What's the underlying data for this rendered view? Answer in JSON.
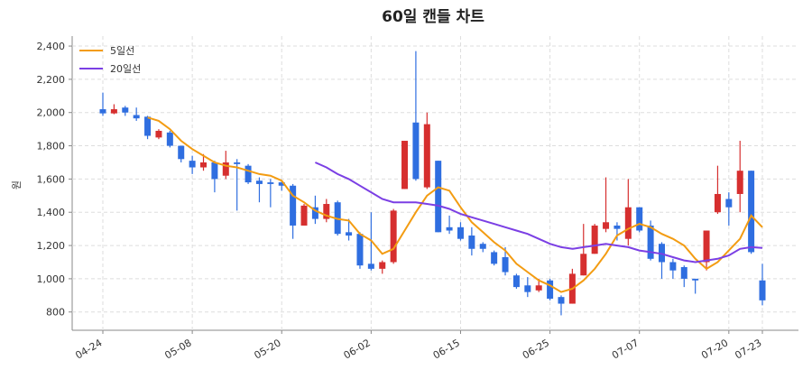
{
  "chart_data": {
    "type": "candlestick",
    "title": "60일 캔들 차트",
    "y_label": "원",
    "categories": [
      "04-24",
      null,
      null,
      null,
      null,
      null,
      null,
      null,
      "05-08",
      null,
      null,
      null,
      null,
      null,
      null,
      null,
      "05-20",
      null,
      null,
      null,
      null,
      null,
      null,
      null,
      "06-02",
      null,
      null,
      null,
      null,
      null,
      null,
      null,
      "06-15",
      null,
      null,
      null,
      null,
      null,
      null,
      null,
      "06-25",
      null,
      null,
      null,
      null,
      null,
      null,
      null,
      "07-07",
      null,
      null,
      null,
      null,
      null,
      null,
      null,
      "07-20",
      null,
      null,
      "07-23"
    ],
    "open": [
      2020,
      1995,
      2030,
      1985,
      1975,
      1850,
      1880,
      1800,
      1710,
      1670,
      1700,
      1620,
      1700,
      1680,
      1590,
      1580,
      1580,
      1560,
      1320,
      1430,
      1360,
      1460,
      1280,
      1270,
      1090,
      1060,
      1100,
      1540,
      1940,
      1550,
      1710,
      1310,
      1310,
      1260,
      1210,
      1160,
      1130,
      1020,
      960,
      930,
      990,
      890,
      850,
      1020,
      1150,
      1300,
      1320,
      1240,
      1430,
      1320,
      1210,
      1100,
      1070,
      1000,
      1100,
      1400,
      1480,
      1510,
      1650,
      990
    ],
    "high": [
      2120,
      2050,
      2040,
      2030,
      1980,
      1900,
      1890,
      1800,
      1740,
      1750,
      1710,
      1770,
      1720,
      1690,
      1610,
      1600,
      1590,
      1570,
      1450,
      1500,
      1480,
      1470,
      1360,
      1280,
      1400,
      1110,
      1420,
      1830,
      2370,
      2000,
      1710,
      1380,
      1340,
      1310,
      1220,
      1170,
      1190,
      1030,
      1010,
      1000,
      1000,
      900,
      1060,
      1330,
      1330,
      1610,
      1340,
      1600,
      1430,
      1350,
      1220,
      1120,
      1080,
      1000,
      1290,
      1680,
      1520,
      1830,
      1650,
      1090
    ],
    "low": [
      1980,
      1990,
      1980,
      1950,
      1840,
      1840,
      1790,
      1700,
      1630,
      1650,
      1520,
      1600,
      1410,
      1570,
      1460,
      1430,
      1530,
      1240,
      1320,
      1330,
      1340,
      1260,
      1230,
      1060,
      1050,
      1030,
      1090,
      1540,
      1590,
      1540,
      1280,
      1270,
      1230,
      1140,
      1160,
      1080,
      1020,
      940,
      890,
      920,
      870,
      780,
      850,
      1020,
      1150,
      1280,
      1230,
      1200,
      1280,
      1110,
      1000,
      1000,
      950,
      910,
      1050,
      1390,
      1320,
      1400,
      1150,
      840
    ],
    "close": [
      1995,
      2020,
      2000,
      1965,
      1860,
      1890,
      1800,
      1720,
      1670,
      1700,
      1600,
      1700,
      1690,
      1580,
      1570,
      1570,
      1560,
      1320,
      1440,
      1360,
      1450,
      1270,
      1260,
      1080,
      1060,
      1100,
      1410,
      1830,
      1600,
      1930,
      1280,
      1290,
      1240,
      1180,
      1180,
      1090,
      1040,
      950,
      920,
      960,
      880,
      850,
      1030,
      1150,
      1320,
      1340,
      1300,
      1430,
      1290,
      1120,
      1100,
      1050,
      1000,
      990,
      1290,
      1510,
      1430,
      1650,
      1160,
      870
    ],
    "up_color": "#d62f2f",
    "down_color": "#2f6ee0",
    "lines": [
      {
        "name": "5일선",
        "color": "#f39c12",
        "values": [
          null,
          null,
          null,
          null,
          1970,
          1950,
          1900,
          1830,
          1780,
          1740,
          1700,
          1680,
          1670,
          1650,
          1630,
          1620,
          1590,
          1500,
          1460,
          1410,
          1380,
          1360,
          1350,
          1270,
          1230,
          1150,
          1180,
          1290,
          1400,
          1500,
          1550,
          1530,
          1430,
          1340,
          1280,
          1220,
          1170,
          1090,
          1040,
          990,
          960,
          920,
          940,
          990,
          1060,
          1150,
          1260,
          1300,
          1330,
          1310,
          1270,
          1240,
          1200,
          1120,
          1060,
          1100,
          1170,
          1240,
          1380,
          1310
        ]
      },
      {
        "name": "20일선",
        "color": "#7b3fe4",
        "values": [
          null,
          null,
          null,
          null,
          null,
          null,
          null,
          null,
          null,
          null,
          null,
          null,
          null,
          null,
          null,
          null,
          null,
          null,
          null,
          1700,
          1670,
          1630,
          1600,
          1560,
          1520,
          1480,
          1460,
          1460,
          1460,
          1450,
          1440,
          1420,
          1390,
          1370,
          1350,
          1330,
          1310,
          1290,
          1270,
          1240,
          1210,
          1190,
          1180,
          1190,
          1200,
          1210,
          1200,
          1190,
          1170,
          1160,
          1150,
          1130,
          1110,
          1100,
          1110,
          1120,
          1140,
          1180,
          1190,
          1185
        ]
      }
    ],
    "ylim": [
      690,
      2460
    ],
    "yticks": [
      800,
      {
        "value": 1000,
        "label": "1,000"
      },
      {
        "value": 1200,
        "label": "1,200"
      },
      {
        "value": 1400,
        "label": "1,400"
      },
      {
        "value": 1600,
        "label": "1,600"
      },
      {
        "value": 1800,
        "label": "1,800"
      },
      {
        "value": 2000,
        "label": "2,000"
      },
      {
        "value": 2200,
        "label": "2,200"
      },
      {
        "value": 2400,
        "label": "2,400"
      }
    ],
    "grid": true,
    "legend": "upper left"
  }
}
